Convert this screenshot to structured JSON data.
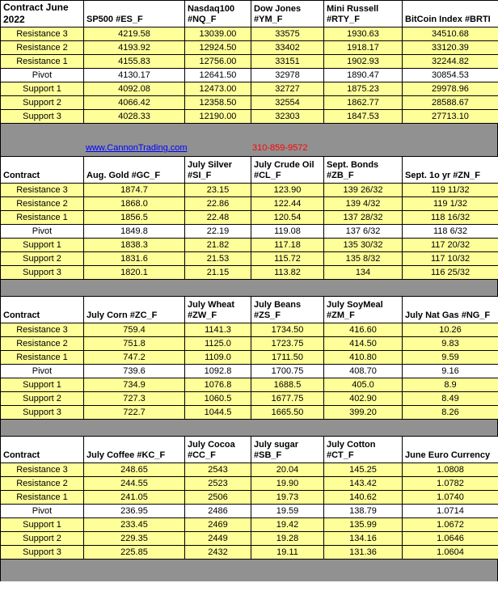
{
  "banner": {
    "link": "www.CannonTrading.com",
    "phone": "310-859-9572"
  },
  "colors": {
    "row_yellow": "#FFFF99",
    "separator_gray": "#919191",
    "link_blue": "#0000FF",
    "phone_red": "#FF0000"
  },
  "row_labels": [
    "Resistance 3",
    "Resistance 2",
    "Resistance 1",
    "Pivot",
    "Support 1",
    "Support 2",
    "Support 3"
  ],
  "sections": [
    {
      "corner": "Contract June 2022",
      "contracts": [
        "SP500 #ES_F",
        "Nasdaq100 #NQ_F",
        "Dow Jones #YM_F",
        "Mini Russell #RTY_F",
        "BitCoin Index #BRTI"
      ],
      "rows": [
        {
          "label": "Resistance 3",
          "values": [
            "4219.58",
            "13039.00",
            "33575",
            "1930.63",
            "34510.68"
          ]
        },
        {
          "label": "Resistance 2",
          "values": [
            "4193.92",
            "12924.50",
            "33402",
            "1918.17",
            "33120.39"
          ]
        },
        {
          "label": "Resistance 1",
          "values": [
            "4155.83",
            "12756.00",
            "33151",
            "1902.93",
            "32244.82"
          ]
        },
        {
          "label": "Pivot",
          "values": [
            "4130.17",
            "12641.50",
            "32978",
            "1890.47",
            "30854.53"
          ]
        },
        {
          "label": "Support 1",
          "values": [
            "4092.08",
            "12473.00",
            "32727",
            "1875.23",
            "29978.96"
          ]
        },
        {
          "label": "Support 2",
          "values": [
            "4066.42",
            "12358.50",
            "32554",
            "1862.77",
            "28588.67"
          ]
        },
        {
          "label": "Support 3",
          "values": [
            "4028.33",
            "12190.00",
            "32303",
            "1847.53",
            "27713.10"
          ]
        }
      ]
    },
    {
      "corner": "Contract",
      "contracts": [
        "Aug. Gold #GC_F",
        "July Silver #SI_F",
        "July Crude Oil #CL_F",
        "Sept. Bonds #ZB_F",
        "Sept. 1o yr  #ZN_F"
      ],
      "rows": [
        {
          "label": "Resistance 3",
          "values": [
            "1874.7",
            "23.15",
            "123.90",
            "139 26/32",
            "119 11/32"
          ]
        },
        {
          "label": "Resistance 2",
          "values": [
            "1868.0",
            "22.86",
            "122.44",
            "139  4/32",
            "119  1/32"
          ]
        },
        {
          "label": "Resistance 1",
          "values": [
            "1856.5",
            "22.48",
            "120.54",
            "137 28/32",
            "118 16/32"
          ]
        },
        {
          "label": "Pivot",
          "values": [
            "1849.8",
            "22.19",
            "119.08",
            "137  6/32",
            "118  6/32"
          ]
        },
        {
          "label": "Support 1",
          "values": [
            "1838.3",
            "21.82",
            "117.18",
            "135 30/32",
            "117 20/32"
          ]
        },
        {
          "label": "Support 2",
          "values": [
            "1831.6",
            "21.53",
            "115.72",
            "135  8/32",
            "117 10/32"
          ]
        },
        {
          "label": "Support 3",
          "values": [
            "1820.1",
            "21.15",
            "113.82",
            "134",
            "116 25/32"
          ]
        }
      ]
    },
    {
      "corner": "Contract",
      "contracts": [
        "July Corn #ZC_F",
        "July  Wheat #ZW_F",
        "July Beans #ZS_F",
        "July SoyMeal #ZM_F",
        "July Nat Gas #NG_F"
      ],
      "rows": [
        {
          "label": "Resistance 3",
          "values": [
            "759.4",
            "1141.3",
            "1734.50",
            "416.60",
            "10.26"
          ]
        },
        {
          "label": "Resistance 2",
          "values": [
            "751.8",
            "1125.0",
            "1723.75",
            "414.50",
            "9.83"
          ]
        },
        {
          "label": "Resistance 1",
          "values": [
            "747.2",
            "1109.0",
            "1711.50",
            "410.80",
            "9.59"
          ]
        },
        {
          "label": "Pivot",
          "values": [
            "739.6",
            "1092.8",
            "1700.75",
            "408.70",
            "9.16"
          ]
        },
        {
          "label": "Support 1",
          "values": [
            "734.9",
            "1076.8",
            "1688.5",
            "405.0",
            "8.9"
          ]
        },
        {
          "label": "Support 2",
          "values": [
            "727.3",
            "1060.5",
            "1677.75",
            "402.90",
            "8.49"
          ]
        },
        {
          "label": "Support 3",
          "values": [
            "722.7",
            "1044.5",
            "1665.50",
            "399.20",
            "8.26"
          ]
        }
      ]
    },
    {
      "corner": "Contract",
      "contracts": [
        "July Coffee #KC_F",
        "July Cocoa #CC_F",
        "July  sugar #SB_F",
        "July Cotton #CT_F",
        "June  Euro Currency"
      ],
      "rows": [
        {
          "label": "Resistance 3",
          "values": [
            "248.65",
            "2543",
            "20.04",
            "145.25",
            "1.0808"
          ]
        },
        {
          "label": "Resistance 2",
          "values": [
            "244.55",
            "2523",
            "19.90",
            "143.42",
            "1.0782"
          ]
        },
        {
          "label": "Resistance 1",
          "values": [
            "241.05",
            "2506",
            "19.73",
            "140.62",
            "1.0740"
          ]
        },
        {
          "label": "Pivot",
          "values": [
            "236.95",
            "2486",
            "19.59",
            "138.79",
            "1.0714"
          ]
        },
        {
          "label": "Support 1",
          "values": [
            "233.45",
            "2469",
            "19.42",
            "135.99",
            "1.0672"
          ]
        },
        {
          "label": "Support 2",
          "values": [
            "229.35",
            "2449",
            "19.28",
            "134.16",
            "1.0646"
          ]
        },
        {
          "label": "Support 3",
          "values": [
            "225.85",
            "2432",
            "19.11",
            "131.36",
            "1.0604"
          ]
        }
      ]
    }
  ]
}
